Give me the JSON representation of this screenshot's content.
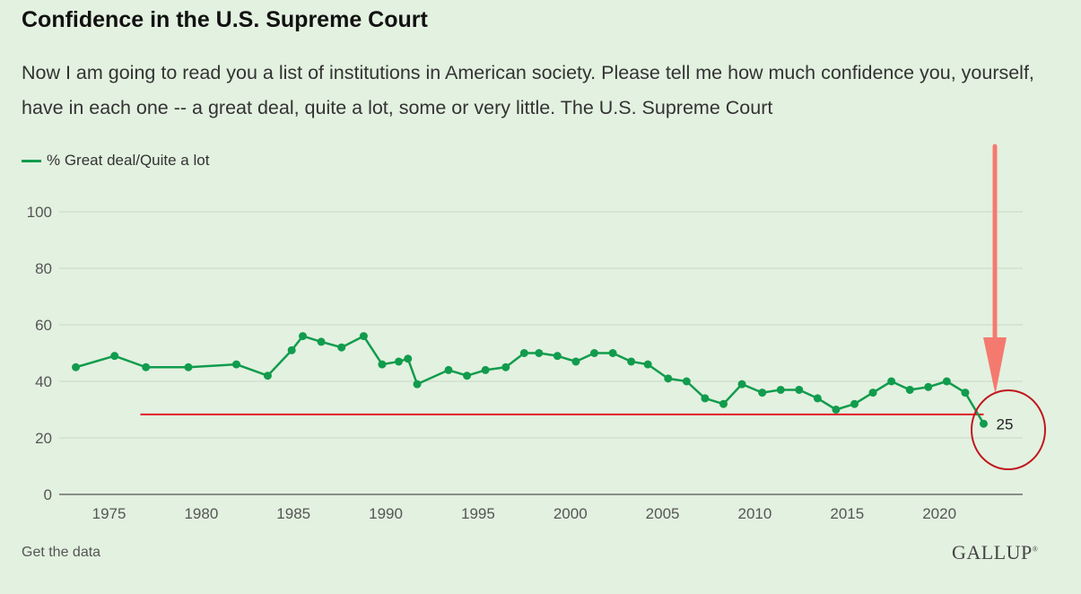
{
  "header": {
    "title": "Confidence in the U.S. Supreme Court",
    "subtitle": "Now I am going to read you a list of institutions in American society. Please tell me how much confidence you, yourself, have in each one -- a great deal, quite a lot, some or very little. The U.S. Supreme Court"
  },
  "footer": {
    "link_label": "Get the data",
    "brand": "GALLUP"
  },
  "colors": {
    "line": "#119c4d",
    "reference_line": "#e0202a",
    "arrow": "#f47a70",
    "circle": "#c0161e",
    "background": "#e3f1e0",
    "grid": "#c9d6c6"
  },
  "chart_data": {
    "type": "line",
    "title": "Confidence in the U.S. Supreme Court",
    "legend": "top-left",
    "grid": true,
    "ylim": [
      0,
      100
    ],
    "xlim": [
      1972.3,
      2023.3
    ],
    "y_ticks": [
      "0",
      "20",
      "40",
      "60",
      "80",
      "100"
    ],
    "x_ticks": [
      "1975",
      "1980",
      "1985",
      "1990",
      "1995",
      "2000",
      "2005",
      "2010",
      "2015",
      "2020"
    ],
    "series": [
      {
        "name": "% Great deal/Quite a lot",
        "x": [
          1973.2,
          1975.3,
          1977.0,
          1979.3,
          1981.9,
          1983.6,
          1984.9,
          1985.5,
          1986.5,
          1987.6,
          1988.8,
          1989.8,
          1990.7,
          1991.2,
          1991.7,
          1993.4,
          1994.4,
          1995.4,
          1996.5,
          1997.5,
          1998.3,
          1999.3,
          2000.3,
          2001.3,
          2002.3,
          2003.3,
          2004.2,
          2005.3,
          2006.3,
          2007.3,
          2008.3,
          2009.3,
          2010.4,
          2011.4,
          2012.4,
          2013.4,
          2014.4,
          2015.4,
          2016.4,
          2017.4,
          2018.4,
          2019.4,
          2020.4,
          2021.4,
          2022.4
        ],
        "values": [
          45,
          49,
          45,
          45,
          46,
          42,
          51,
          56,
          54,
          52,
          56,
          46,
          47,
          48,
          39,
          44,
          42,
          44,
          45,
          50,
          50,
          49,
          47,
          50,
          50,
          47,
          46,
          41,
          40,
          34,
          32,
          39,
          36,
          37,
          37,
          34,
          30,
          32,
          36,
          40,
          37,
          38,
          40,
          36,
          25
        ]
      }
    ],
    "annotations": [
      {
        "type": "data-label",
        "text": "25"
      },
      {
        "type": "horizontal-line",
        "y": 28.3,
        "x_from": 1976.7,
        "x_to": 2022.4
      }
    ]
  }
}
